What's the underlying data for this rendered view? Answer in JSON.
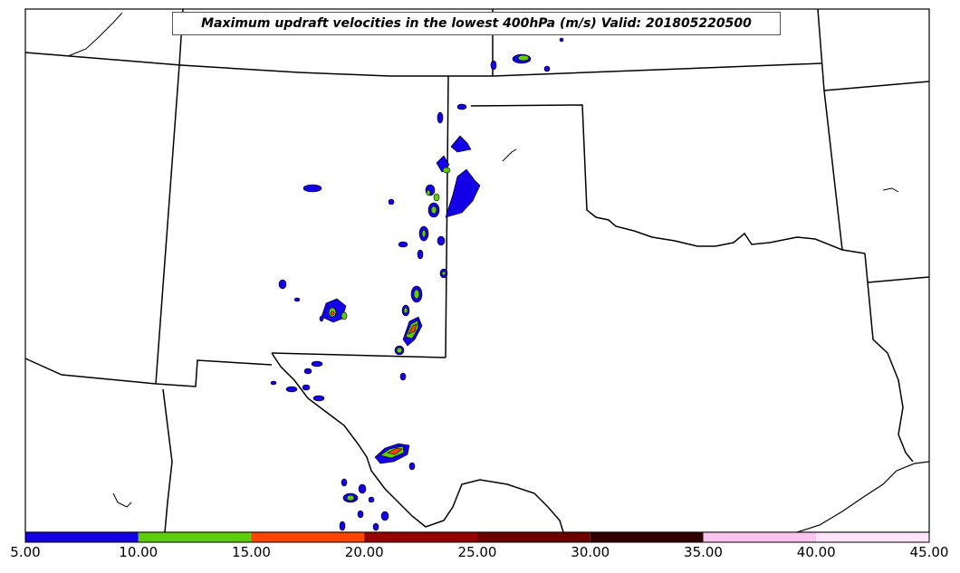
{
  "title": "Maximum updraft velocities in the lowest 400hPa (m/s) Valid: 201805220500",
  "colorbar": {
    "bins": [
      {
        "from": 5,
        "to": 10,
        "color": "#1400e6"
      },
      {
        "from": 10,
        "to": 15,
        "color": "#5fce0a"
      },
      {
        "from": 15,
        "to": 20,
        "color": "#ff4400"
      },
      {
        "from": 20,
        "to": 25,
        "color": "#990000"
      },
      {
        "from": 25,
        "to": 30,
        "color": "#6e0000"
      },
      {
        "from": 30,
        "to": 35,
        "color": "#320000"
      },
      {
        "from": 35,
        "to": 40,
        "color": "#f9c3f0"
      },
      {
        "from": 40,
        "to": 45,
        "color": "#fde4fa"
      }
    ],
    "tick_labels": [
      "5.00",
      "10.00",
      "15.00",
      "20.00",
      "25.00",
      "30.00",
      "35.00",
      "40.00",
      "45.00"
    ]
  }
}
